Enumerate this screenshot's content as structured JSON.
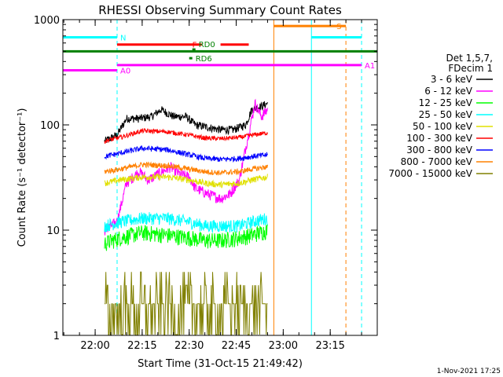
{
  "chart_data": {
    "type": "line",
    "title": "RHESSI Observing Summary Count Rates",
    "xlabel": "Start Time (31-Oct-15 21:49:42)",
    "ylabel": "Count Rate (s⁻¹ detector⁻¹)",
    "yscale": "log",
    "ylim": [
      1,
      1000
    ],
    "xlim": [
      "21:49:42",
      "23:30:00"
    ],
    "x_ticks": [
      "22:00",
      "22:15",
      "22:30",
      "22:45",
      "23:00",
      "23:15"
    ],
    "y_ticks": [
      "1",
      "10",
      "100",
      "1000"
    ],
    "legend_header": [
      "Det 1,5,7,",
      "FDecim 1"
    ],
    "footer_date": "1-Nov-2021 17:25",
    "series": [
      {
        "name": "3 - 6 keV",
        "color": "#000000",
        "noise": 0.045,
        "x": [
          "22:03",
          "22:07",
          "22:10",
          "22:14",
          "22:18",
          "22:21",
          "22:25",
          "22:29",
          "22:32",
          "22:36",
          "22:40",
          "22:44",
          "22:48",
          "22:50",
          "22:53",
          "22:55"
        ],
        "values": [
          70,
          80,
          115,
          115,
          120,
          140,
          120,
          120,
          100,
          95,
          90,
          90,
          100,
          140,
          150,
          160
        ]
      },
      {
        "name": "6 - 12 keV",
        "color": "#ff00ff",
        "noise": 0.06,
        "x": [
          "22:03",
          "22:07",
          "22:10",
          "22:14",
          "22:17",
          "22:20",
          "22:24",
          "22:27",
          "22:30",
          "22:32",
          "22:36",
          "22:40",
          "22:43",
          "22:46",
          "22:48",
          "22:51",
          "22:53",
          "22:55"
        ],
        "values": [
          10,
          12,
          28,
          36,
          30,
          34,
          40,
          34,
          32,
          25,
          22,
          20,
          22,
          30,
          60,
          160,
          120,
          140
        ]
      },
      {
        "name": "12 - 25 keV",
        "color": "#00ff00",
        "noise": 0.09,
        "x": [
          "22:03",
          "22:08",
          "22:15",
          "22:23",
          "22:30",
          "22:35",
          "22:40",
          "22:46",
          "22:50",
          "22:55"
        ],
        "values": [
          7.5,
          8.5,
          9.5,
          9,
          8.5,
          8,
          8,
          8.5,
          9,
          10
        ]
      },
      {
        "name": "25 - 50 keV",
        "color": "#00ffff",
        "noise": 0.07,
        "x": [
          "22:03",
          "22:08",
          "22:15",
          "22:23",
          "22:30",
          "22:35",
          "22:40",
          "22:46",
          "22:50",
          "22:55"
        ],
        "values": [
          11,
          12,
          13,
          13,
          12,
          11,
          11,
          11,
          12,
          13
        ]
      },
      {
        "name": "50 - 100 keV",
        "color": "#e0e000",
        "noise": 0.035,
        "x": [
          "22:03",
          "22:08",
          "22:15",
          "22:23",
          "22:30",
          "22:35",
          "22:40",
          "22:46",
          "22:50",
          "22:55"
        ],
        "values": [
          28,
          30,
          32,
          32,
          30,
          28,
          27,
          28,
          30,
          32
        ]
      },
      {
        "name": "100 - 300 keV",
        "color": "#ff0000",
        "noise": 0.025,
        "x": [
          "22:03",
          "22:08",
          "22:15",
          "22:23",
          "22:30",
          "22:35",
          "22:40",
          "22:46",
          "22:50",
          "22:55"
        ],
        "values": [
          70,
          76,
          88,
          86,
          80,
          75,
          74,
          76,
          80,
          84
        ]
      },
      {
        "name": "300 - 800 keV",
        "color": "#0000ff",
        "noise": 0.03,
        "x": [
          "22:03",
          "22:08",
          "22:15",
          "22:23",
          "22:30",
          "22:35",
          "22:40",
          "22:46",
          "22:50",
          "22:55"
        ],
        "values": [
          50,
          54,
          60,
          58,
          52,
          48,
          47,
          48,
          50,
          52
        ]
      },
      {
        "name": "800 - 7000 keV",
        "color": "#ff8000",
        "noise": 0.03,
        "x": [
          "22:03",
          "22:08",
          "22:15",
          "22:23",
          "22:30",
          "22:35",
          "22:40",
          "22:46",
          "22:50",
          "22:55"
        ],
        "values": [
          36,
          38,
          42,
          41,
          38,
          36,
          35,
          36,
          38,
          40
        ]
      },
      {
        "name": "7000 - 15000 keV",
        "color": "#808000",
        "noise": 0.0,
        "x": [
          "22:03",
          "22:55"
        ],
        "values": [
          2,
          2
        ]
      }
    ],
    "flag_bars": [
      {
        "label": "N",
        "color": "#00ffff",
        "segments": [
          [
            "21:49:42",
            "22:07"
          ],
          [
            "23:09",
            "23:25"
          ]
        ],
        "value": 680
      },
      {
        "label": "S",
        "color": "#ff8000",
        "segments": [
          [
            "22:57",
            "23:20"
          ]
        ],
        "value": 870
      },
      {
        "label": "F",
        "color": "#ff0000",
        "segments": [
          [
            "22:07",
            "22:34"
          ],
          [
            "22:40",
            "22:49"
          ]
        ],
        "value": 580
      },
      {
        "label": "",
        "color": "#008000",
        "segments": [
          [
            "21:49:42",
            "23:30"
          ]
        ],
        "value": 500
      },
      {
        "label": "RD6",
        "color": "#008000",
        "segments": [
          [
            "22:30",
            "22:31"
          ]
        ],
        "value": 430
      },
      {
        "label": "RD0",
        "color": "#008000",
        "segments": [
          [
            "22:31",
            "22:32"
          ]
        ],
        "value": 520
      },
      {
        "label": "A0",
        "color": "#ff00ff",
        "segments": [
          [
            "21:49:42",
            "22:07"
          ]
        ],
        "value": 330
      },
      {
        "label": "A1",
        "color": "#ff00ff",
        "segments": [
          [
            "22:07",
            "23:25"
          ]
        ],
        "value": 370
      }
    ],
    "vertical_markers": [
      {
        "x": "21:49:42",
        "color": "#00ffff",
        "style": "solid"
      },
      {
        "x": "22:07",
        "color": "#00ffff",
        "style": "dashed"
      },
      {
        "x": "22:57",
        "color": "#ff8000",
        "style": "solid"
      },
      {
        "x": "23:09",
        "color": "#00ffff",
        "style": "solid"
      },
      {
        "x": "23:20",
        "color": "#ff8000",
        "style": "dashed"
      },
      {
        "x": "23:25",
        "color": "#00ffff",
        "style": "dashed"
      }
    ]
  }
}
